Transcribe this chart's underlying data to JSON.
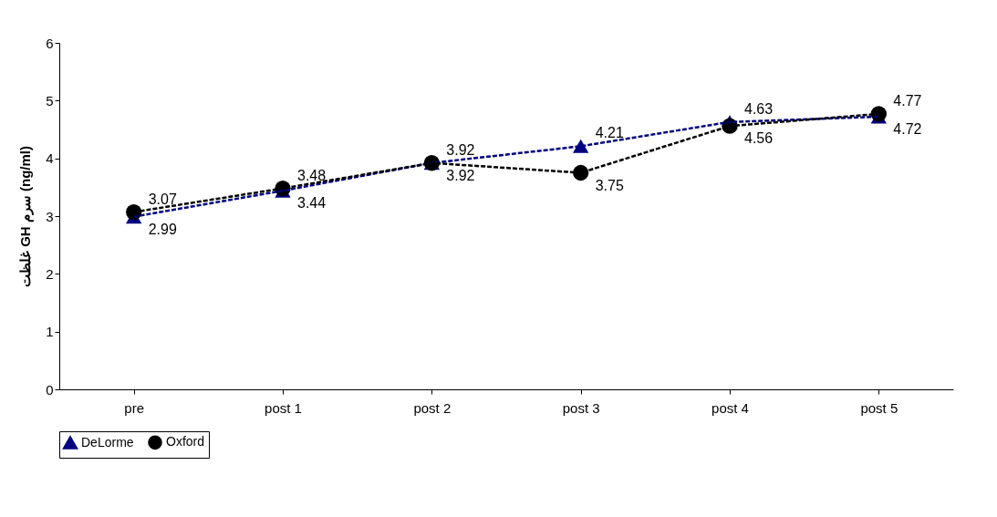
{
  "chart_data": {
    "type": "line",
    "ylabel": "غلظت GH سرم (ng/ml)",
    "categories": [
      "pre",
      "post 1",
      "post 2",
      "post 3",
      "post 4",
      "post 5"
    ],
    "series": [
      {
        "name": "DeLorme",
        "color": "#000080",
        "marker": "triangle",
        "line_style": "dashed",
        "values": [
          2.99,
          3.44,
          3.92,
          4.21,
          4.63,
          4.72
        ]
      },
      {
        "name": "Oxford",
        "color": "#000000",
        "marker": "circle",
        "line_style": "dashed",
        "values": [
          3.07,
          3.48,
          3.92,
          3.75,
          4.56,
          4.77
        ]
      }
    ],
    "ylim": [
      0,
      6
    ],
    "yticks": [
      0,
      1,
      2,
      3,
      4,
      5,
      6
    ],
    "grid": false,
    "legend": "bottom",
    "data_labels": true
  }
}
